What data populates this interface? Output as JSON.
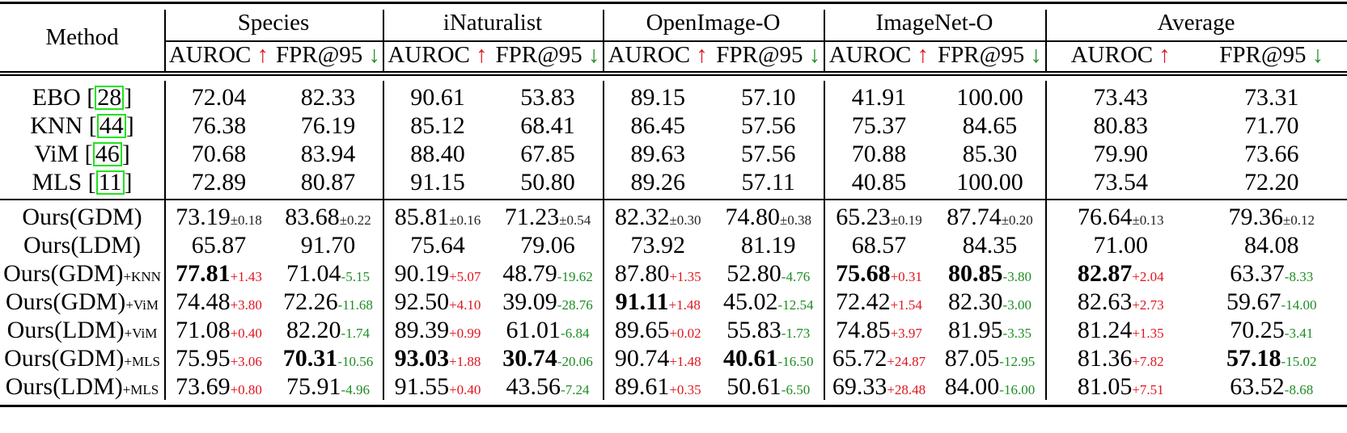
{
  "table": {
    "method_header": "Method",
    "datasets": [
      "Species",
      "iNaturalist",
      "OpenImage-O",
      "ImageNet-O",
      "Average"
    ],
    "metric_headers": [
      {
        "label": "AUROC",
        "arrow": "↑",
        "direction": "higher-better"
      },
      {
        "label": "FPR@95",
        "arrow": "↓",
        "direction": "lower-better"
      }
    ],
    "colors": {
      "improve_up": "#e0141e",
      "improve_down": "#1e8c23",
      "cite_box": "#22e21e"
    },
    "baselines": [
      {
        "method": "EBO",
        "cite": "28",
        "values": [
          "72.04",
          "82.33",
          "90.61",
          "53.83",
          "89.15",
          "57.10",
          "41.91",
          "100.00",
          "73.43",
          "73.31"
        ]
      },
      {
        "method": "KNN",
        "cite": "44",
        "values": [
          "76.38",
          "76.19",
          "85.12",
          "68.41",
          "86.45",
          "57.56",
          "75.37",
          "84.65",
          "80.83",
          "71.70"
        ]
      },
      {
        "method": "ViM",
        "cite": "46",
        "values": [
          "70.68",
          "83.94",
          "88.40",
          "67.85",
          "89.63",
          "57.56",
          "70.88",
          "85.30",
          "79.90",
          "73.66"
        ]
      },
      {
        "method": "MLS",
        "cite": "11",
        "values": [
          "72.89",
          "80.87",
          "91.15",
          "50.80",
          "89.26",
          "57.11",
          "40.85",
          "100.00",
          "73.54",
          "72.20"
        ]
      }
    ],
    "ours": [
      {
        "method": "Ours(GDM)",
        "suffix": "",
        "values": [
          {
            "v": "73.19",
            "d": "±0.18",
            "t": "pm",
            "bold": false
          },
          {
            "v": "83.68",
            "d": "±0.22",
            "t": "pm",
            "bold": false
          },
          {
            "v": "85.81",
            "d": "±0.16",
            "t": "pm",
            "bold": false
          },
          {
            "v": "71.23",
            "d": "±0.54",
            "t": "pm",
            "bold": false
          },
          {
            "v": "82.32",
            "d": "±0.30",
            "t": "pm",
            "bold": false
          },
          {
            "v": "74.80",
            "d": "±0.38",
            "t": "pm",
            "bold": false
          },
          {
            "v": "65.23",
            "d": "±0.19",
            "t": "pm",
            "bold": false
          },
          {
            "v": "87.74",
            "d": "±0.20",
            "t": "pm",
            "bold": false
          },
          {
            "v": "76.64",
            "d": "±0.13",
            "t": "pm",
            "bold": false
          },
          {
            "v": "79.36",
            "d": "±0.12",
            "t": "pm",
            "bold": false
          }
        ]
      },
      {
        "method": "Ours(LDM)",
        "suffix": "",
        "values": [
          {
            "v": "65.87",
            "d": "",
            "t": "",
            "bold": false
          },
          {
            "v": "91.70",
            "d": "",
            "t": "",
            "bold": false
          },
          {
            "v": "75.64",
            "d": "",
            "t": "",
            "bold": false
          },
          {
            "v": "79.06",
            "d": "",
            "t": "",
            "bold": false
          },
          {
            "v": "73.92",
            "d": "",
            "t": "",
            "bold": false
          },
          {
            "v": "81.19",
            "d": "",
            "t": "",
            "bold": false
          },
          {
            "v": "68.57",
            "d": "",
            "t": "",
            "bold": false
          },
          {
            "v": "84.35",
            "d": "",
            "t": "",
            "bold": false
          },
          {
            "v": "71.00",
            "d": "",
            "t": "",
            "bold": false
          },
          {
            "v": "84.08",
            "d": "",
            "t": "",
            "bold": false
          }
        ]
      },
      {
        "method": "Ours(GDM)",
        "suffix": "+KNN",
        "values": [
          {
            "v": "77.81",
            "d": "+1.43",
            "t": "up",
            "bold": true
          },
          {
            "v": "71.04",
            "d": "-5.15",
            "t": "down",
            "bold": false
          },
          {
            "v": "90.19",
            "d": "+5.07",
            "t": "up",
            "bold": false
          },
          {
            "v": "48.79",
            "d": "-19.62",
            "t": "down",
            "bold": false
          },
          {
            "v": "87.80",
            "d": "+1.35",
            "t": "up",
            "bold": false
          },
          {
            "v": "52.80",
            "d": "-4.76",
            "t": "down",
            "bold": false
          },
          {
            "v": "75.68",
            "d": "+0.31",
            "t": "up",
            "bold": true
          },
          {
            "v": "80.85",
            "d": "-3.80",
            "t": "down",
            "bold": true
          },
          {
            "v": "82.87",
            "d": "+2.04",
            "t": "up",
            "bold": true
          },
          {
            "v": "63.37",
            "d": "-8.33",
            "t": "down",
            "bold": false
          }
        ]
      },
      {
        "method": "Ours(GDM)",
        "suffix": "+ViM",
        "values": [
          {
            "v": "74.48",
            "d": "+3.80",
            "t": "up",
            "bold": false
          },
          {
            "v": "72.26",
            "d": "-11.68",
            "t": "down",
            "bold": false
          },
          {
            "v": "92.50",
            "d": "+4.10",
            "t": "up",
            "bold": false
          },
          {
            "v": "39.09",
            "d": "-28.76",
            "t": "down",
            "bold": false
          },
          {
            "v": "91.11",
            "d": "+1.48",
            "t": "up",
            "bold": true
          },
          {
            "v": "45.02",
            "d": "-12.54",
            "t": "down",
            "bold": false
          },
          {
            "v": "72.42",
            "d": "+1.54",
            "t": "up",
            "bold": false
          },
          {
            "v": "82.30",
            "d": "-3.00",
            "t": "down",
            "bold": false
          },
          {
            "v": "82.63",
            "d": "+2.73",
            "t": "up",
            "bold": false
          },
          {
            "v": "59.67",
            "d": "-14.00",
            "t": "down",
            "bold": false
          }
        ]
      },
      {
        "method": "Ours(LDM)",
        "suffix": "+ViM",
        "values": [
          {
            "v": "71.08",
            "d": "+0.40",
            "t": "up",
            "bold": false
          },
          {
            "v": "82.20",
            "d": "-1.74",
            "t": "down",
            "bold": false
          },
          {
            "v": "89.39",
            "d": "+0.99",
            "t": "up",
            "bold": false
          },
          {
            "v": "61.01",
            "d": "-6.84",
            "t": "down",
            "bold": false
          },
          {
            "v": "89.65",
            "d": "+0.02",
            "t": "up",
            "bold": false
          },
          {
            "v": "55.83",
            "d": "-1.73",
            "t": "down",
            "bold": false
          },
          {
            "v": "74.85",
            "d": "+3.97",
            "t": "up",
            "bold": false
          },
          {
            "v": "81.95",
            "d": "-3.35",
            "t": "down",
            "bold": false
          },
          {
            "v": "81.24",
            "d": "+1.35",
            "t": "up",
            "bold": false
          },
          {
            "v": "70.25",
            "d": "-3.41",
            "t": "down",
            "bold": false
          }
        ]
      },
      {
        "method": "Ours(GDM)",
        "suffix": "+MLS",
        "values": [
          {
            "v": "75.95",
            "d": "+3.06",
            "t": "up",
            "bold": false
          },
          {
            "v": "70.31",
            "d": "-10.56",
            "t": "down",
            "bold": true
          },
          {
            "v": "93.03",
            "d": "+1.88",
            "t": "up",
            "bold": true
          },
          {
            "v": "30.74",
            "d": "-20.06",
            "t": "down",
            "bold": true
          },
          {
            "v": "90.74",
            "d": "+1.48",
            "t": "up",
            "bold": false
          },
          {
            "v": "40.61",
            "d": "-16.50",
            "t": "down",
            "bold": true
          },
          {
            "v": "65.72",
            "d": "+24.87",
            "t": "up",
            "bold": false
          },
          {
            "v": "87.05",
            "d": "-12.95",
            "t": "down",
            "bold": false
          },
          {
            "v": "81.36",
            "d": "+7.82",
            "t": "up",
            "bold": false
          },
          {
            "v": "57.18",
            "d": "-15.02",
            "t": "down",
            "bold": true
          }
        ]
      },
      {
        "method": "Ours(LDM)",
        "suffix": "+MLS",
        "values": [
          {
            "v": "73.69",
            "d": "+0.80",
            "t": "up",
            "bold": false
          },
          {
            "v": "75.91",
            "d": "-4.96",
            "t": "down",
            "bold": false
          },
          {
            "v": "91.55",
            "d": "+0.40",
            "t": "up",
            "bold": false
          },
          {
            "v": "43.56",
            "d": "-7.24",
            "t": "down",
            "bold": false
          },
          {
            "v": "89.61",
            "d": "+0.35",
            "t": "up",
            "bold": false
          },
          {
            "v": "50.61",
            "d": "-6.50",
            "t": "down",
            "bold": false
          },
          {
            "v": "69.33",
            "d": "+28.48",
            "t": "up",
            "bold": false
          },
          {
            "v": "84.00",
            "d": "-16.00",
            "t": "down",
            "bold": false
          },
          {
            "v": "81.05",
            "d": "+7.51",
            "t": "up",
            "bold": false
          },
          {
            "v": "63.52",
            "d": "-8.68",
            "t": "down",
            "bold": false
          }
        ]
      }
    ]
  }
}
